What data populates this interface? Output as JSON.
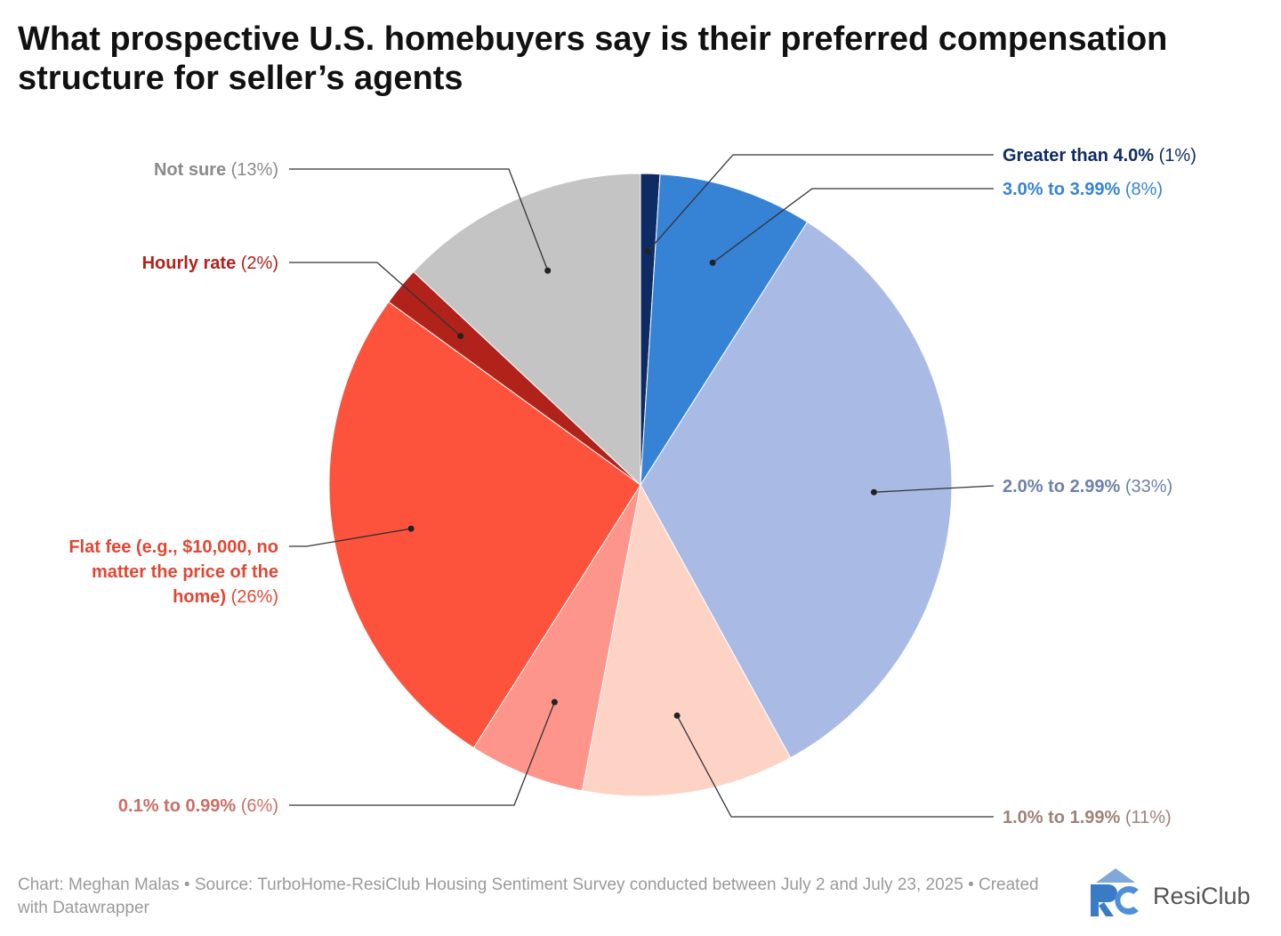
{
  "chart_data": {
    "type": "pie",
    "title": "What prospective U.S. homebuyers say is their preferred compensation structure for seller’s agents",
    "slices": [
      {
        "name": "Greater than 4.0%",
        "value": 1,
        "value_label": "(1%)",
        "color": "#0e2c63",
        "label_color": "#0e2c63"
      },
      {
        "name": "3.0% to 3.99%",
        "value": 8,
        "value_label": "(8%)",
        "color": "#3683d6",
        "label_color": "#3683d6"
      },
      {
        "name": "2.0% to 2.99%",
        "value": 33,
        "value_label": "(33%)",
        "color": "#a9bbe5",
        "label_color": "#6e81a8"
      },
      {
        "name": "1.0% to 1.99%",
        "value": 11,
        "value_label": "(11%)",
        "color": "#fdd3c6",
        "label_color": "#9e8278"
      },
      {
        "name": "0.1% to 0.99%",
        "value": 6,
        "value_label": "(6%)",
        "color": "#fd958b",
        "label_color": "#cc6d66"
      },
      {
        "name": "Flat fee (e.g., $10,000, no matter the price of the home)",
        "name_lines": [
          "Flat fee (e.g., $10,000, no",
          "matter the price of the",
          "home)"
        ],
        "value": 26,
        "value_label": "(26%)",
        "color": "#fd533c",
        "label_color": "#e14734"
      },
      {
        "name": "Hourly rate",
        "value": 2,
        "value_label": "(2%)",
        "color": "#b1221b",
        "label_color": "#b1221b"
      },
      {
        "name": "Not sure",
        "value": 13,
        "value_label": "(13%)",
        "color": "#c4c4c4",
        "label_color": "#8a8a8a"
      }
    ]
  },
  "footer": {
    "credit": "Chart: Meghan Malas • Source: TurboHome-ResiClub Housing Sentiment Survey conducted between July 2 and July 23, 2025 • Created with Datawrapper"
  },
  "logo": {
    "text": "ResiClub",
    "colors": {
      "r": "#3a7bc8",
      "c": "#4f8fd6",
      "roof": "#7fa9d8"
    }
  }
}
